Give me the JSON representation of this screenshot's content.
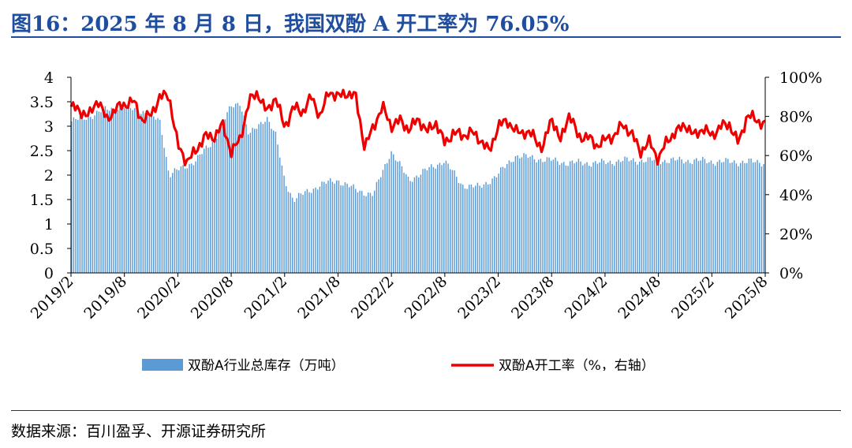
{
  "title": "图16：2025 年 8 月 8 日，我国双酚 A 开工率为 76.05%",
  "source": "数据来源：百川盈孚、开源证券研究所",
  "colors": {
    "bars": "#5b9bd5",
    "line": "#ee0000",
    "title": "#1f4e9e"
  },
  "chart_data": {
    "type": "bar+line",
    "title": "",
    "x_tick_labels": [
      "2019/2",
      "2019/8",
      "2020/2",
      "2020/8",
      "2021/2",
      "2021/8",
      "2022/2",
      "2022/8",
      "2023/2",
      "2023/8",
      "2024/2",
      "2024/8",
      "2025/2",
      "2025/8"
    ],
    "y_left": {
      "ylim": [
        0,
        4
      ],
      "ticks": [
        "0",
        "0.5",
        "1",
        "1.5",
        "2",
        "2.5",
        "3",
        "3.5",
        "4"
      ]
    },
    "y_right": {
      "ylim": [
        0,
        100
      ],
      "ticks": [
        "0%",
        "20%",
        "40%",
        "60%",
        "80%",
        "100%"
      ]
    },
    "grid": false,
    "legend_position": "bottom",
    "series": [
      {
        "name": "双酚A行业总库存（万吨）",
        "type": "bar",
        "axis": "left",
        "keyframes": [
          [
            "2019/2",
            3.1
          ],
          [
            "2019/4",
            3.2
          ],
          [
            "2019/6",
            3.35
          ],
          [
            "2019/8",
            3.4
          ],
          [
            "2019/10",
            3.3
          ],
          [
            "2019/12",
            3.1
          ],
          [
            "2020/1",
            2.0
          ],
          [
            "2020/2",
            2.1
          ],
          [
            "2020/4",
            2.3
          ],
          [
            "2020/6",
            2.7
          ],
          [
            "2020/8",
            3.4
          ],
          [
            "2020/9",
            3.5
          ],
          [
            "2020/10",
            2.8
          ],
          [
            "2020/12",
            3.2
          ],
          [
            "2021/1",
            2.8
          ],
          [
            "2021/2",
            1.9
          ],
          [
            "2021/3",
            1.5
          ],
          [
            "2021/4",
            1.6
          ],
          [
            "2021/6",
            1.8
          ],
          [
            "2021/8",
            1.9
          ],
          [
            "2021/10",
            1.7
          ],
          [
            "2021/12",
            1.6
          ],
          [
            "2022/2",
            2.5
          ],
          [
            "2022/4",
            1.9
          ],
          [
            "2022/6",
            2.1
          ],
          [
            "2022/8",
            2.3
          ],
          [
            "2022/10",
            1.8
          ],
          [
            "2022/12",
            1.75
          ],
          [
            "2023/2",
            2.0
          ],
          [
            "2023/4",
            2.4
          ],
          [
            "2023/6",
            2.35
          ],
          [
            "2023/8",
            2.3
          ],
          [
            "2023/10",
            2.25
          ],
          [
            "2023/12",
            2.25
          ],
          [
            "2024/2",
            2.25
          ],
          [
            "2024/4",
            2.3
          ],
          [
            "2024/6",
            2.3
          ],
          [
            "2024/8",
            2.3
          ],
          [
            "2024/10",
            2.3
          ],
          [
            "2024/12",
            2.3
          ],
          [
            "2025/2",
            2.28
          ],
          [
            "2025/4",
            2.27
          ],
          [
            "2025/6",
            2.27
          ],
          [
            "2025/8",
            2.26
          ]
        ]
      },
      {
        "name": "双酚A开工率（%，右轴）",
        "type": "line",
        "axis": "right",
        "keyframes": [
          [
            "2019/2",
            85
          ],
          [
            "2019/3",
            83
          ],
          [
            "2019/4",
            80
          ],
          [
            "2019/5",
            89
          ],
          [
            "2019/6",
            78
          ],
          [
            "2019/7",
            84
          ],
          [
            "2019/8",
            86
          ],
          [
            "2019/9",
            88
          ],
          [
            "2019/10",
            78
          ],
          [
            "2019/11",
            81
          ],
          [
            "2019/12",
            90
          ],
          [
            "2020/1",
            91
          ],
          [
            "2020/2",
            65
          ],
          [
            "2020/3",
            57
          ],
          [
            "2020/4",
            62
          ],
          [
            "2020/5",
            70
          ],
          [
            "2020/6",
            69
          ],
          [
            "2020/7",
            76
          ],
          [
            "2020/8",
            62
          ],
          [
            "2020/9",
            68
          ],
          [
            "2020/10",
            88
          ],
          [
            "2020/11",
            92
          ],
          [
            "2020/12",
            82
          ],
          [
            "2021/1",
            90
          ],
          [
            "2021/2",
            74
          ],
          [
            "2021/3",
            85
          ],
          [
            "2021/4",
            82
          ],
          [
            "2021/5",
            90
          ],
          [
            "2021/6",
            80
          ],
          [
            "2021/7",
            93
          ],
          [
            "2021/8",
            90
          ],
          [
            "2021/9",
            92
          ],
          [
            "2021/10",
            90
          ],
          [
            "2021/11",
            64
          ],
          [
            "2021/12",
            75
          ],
          [
            "2022/1",
            85
          ],
          [
            "2022/2",
            75
          ],
          [
            "2022/3",
            78
          ],
          [
            "2022/4",
            73
          ],
          [
            "2022/5",
            79
          ],
          [
            "2022/6",
            72
          ],
          [
            "2022/7",
            77
          ],
          [
            "2022/8",
            66
          ],
          [
            "2022/9",
            72
          ],
          [
            "2022/10",
            70
          ],
          [
            "2022/11",
            72
          ],
          [
            "2022/12",
            68
          ],
          [
            "2023/1",
            62
          ],
          [
            "2023/2",
            75
          ],
          [
            "2023/3",
            78
          ],
          [
            "2023/4",
            72
          ],
          [
            "2023/5",
            72
          ],
          [
            "2023/6",
            70
          ],
          [
            "2023/7",
            63
          ],
          [
            "2023/8",
            80
          ],
          [
            "2023/9",
            67
          ],
          [
            "2023/10",
            82
          ],
          [
            "2023/11",
            69
          ],
          [
            "2023/12",
            70
          ],
          [
            "2024/1",
            65
          ],
          [
            "2024/2",
            68
          ],
          [
            "2024/3",
            70
          ],
          [
            "2024/4",
            76
          ],
          [
            "2024/5",
            71
          ],
          [
            "2024/6",
            62
          ],
          [
            "2024/7",
            67
          ],
          [
            "2024/8",
            58
          ],
          [
            "2024/9",
            68
          ],
          [
            "2024/10",
            72
          ],
          [
            "2024/11",
            76
          ],
          [
            "2024/12",
            70
          ],
          [
            "2025/1",
            74
          ],
          [
            "2025/2",
            70
          ],
          [
            "2025/3",
            75
          ],
          [
            "2025/4",
            76
          ],
          [
            "2025/5",
            66
          ],
          [
            "2025/6",
            81
          ],
          [
            "2025/7",
            78
          ],
          [
            "2025/8",
            76
          ]
        ]
      }
    ]
  }
}
